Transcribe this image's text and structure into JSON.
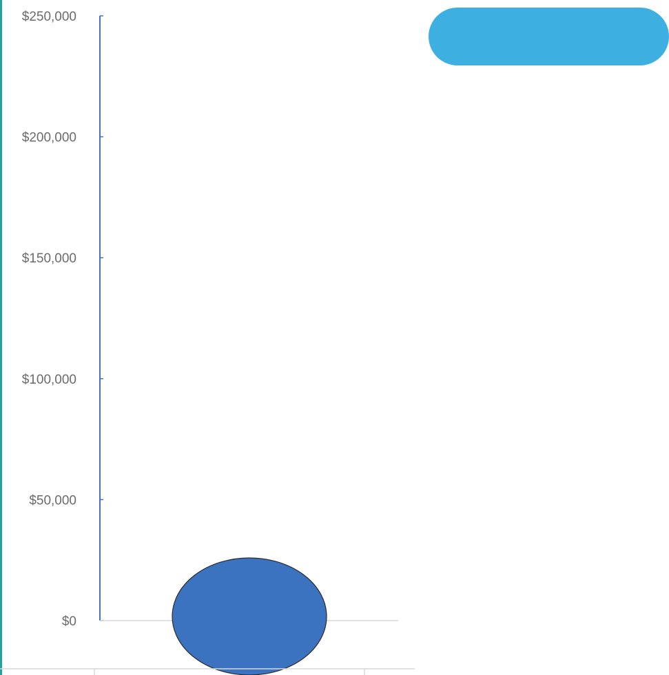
{
  "chart_data": {
    "type": "bar",
    "title": "",
    "xlabel": "",
    "ylabel": "",
    "ylim": [
      0,
      250000
    ],
    "yticks": [
      0,
      50000,
      100000,
      150000,
      200000,
      250000
    ],
    "ytick_labels": [
      "$0",
      "$50,000",
      "$100,000",
      "$150,000",
      "$200,000",
      "$250,000"
    ],
    "categories": [
      ""
    ],
    "values": [
      0
    ],
    "marker_shape": "ellipse",
    "grid": false,
    "legend": "none"
  },
  "colors": {
    "axis": "#4472c4",
    "baseline": "#d9d9d9",
    "marker_fill": "#3c73c0",
    "marker_stroke": "#2b2b2b",
    "pill": "#3db0e1",
    "left_border": "#1fa59a"
  },
  "decorations": {
    "pill_label": ""
  }
}
